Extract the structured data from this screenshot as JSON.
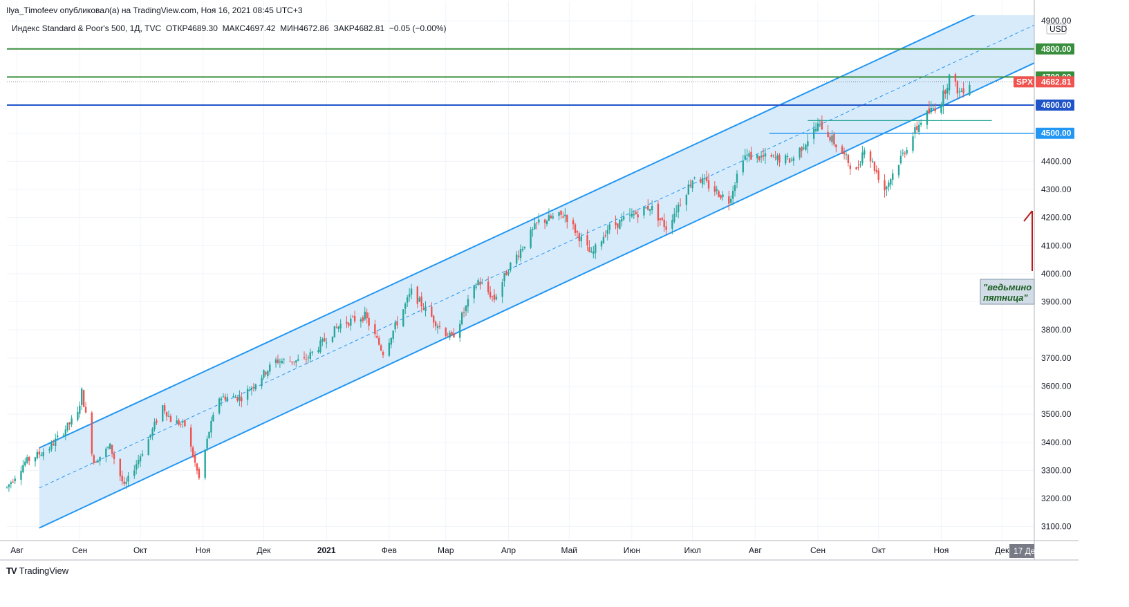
{
  "header": {
    "credit": "Ilya_Timofeev опубликовал(а) на TradingView.com, Ноя 16, 2021 08:45 UTC+3",
    "symbol": "Индекс Standard & Poor's 500, 1Д, TVC",
    "open_label": "ОТКР",
    "open": "4689.30",
    "high_label": "МАКС",
    "high": "4697.42",
    "low_label": "МИН",
    "low": "4672.86",
    "close_label": "ЗАКР",
    "close": "4682.81",
    "change": "−0.05 (−0.00%)"
  },
  "footer": {
    "brand": "TradingView",
    "logo": "TV"
  },
  "colors": {
    "up": "#26a69a",
    "down": "#ef5350",
    "channel": "#2196f3",
    "channel_fill": "#d4e9fb",
    "green_line": "#388e3c",
    "blue_line": "#1e54c8",
    "level_blue": "#2196f3",
    "arrow": "#b71c1c"
  },
  "chart_data": {
    "type": "candlestick",
    "currency": "USD",
    "ylim": [
      3050,
      4920
    ],
    "y_ticks": [
      "4900.00",
      "4800.00",
      "4700.00",
      "4600.00",
      "4500.00",
      "4400.00",
      "4300.00",
      "4200.00",
      "4100.00",
      "4000.00",
      "3900.00",
      "3800.00",
      "3700.00",
      "3600.00",
      "3500.00",
      "3400.00",
      "3300.00",
      "3200.00",
      "3100.00"
    ],
    "x_start": "2020-07-27",
    "x_end": "2021-12-17",
    "x_ticks": [
      {
        "date": "2020-08-01",
        "label": "Авг"
      },
      {
        "date": "2020-09-01",
        "label": "Сен"
      },
      {
        "date": "2020-10-01",
        "label": "Окт"
      },
      {
        "date": "2020-11-01",
        "label": "Ноя"
      },
      {
        "date": "2020-12-01",
        "label": "Дек"
      },
      {
        "date": "2021-01-01",
        "label": "2021"
      },
      {
        "date": "2021-02-01",
        "label": "Фев"
      },
      {
        "date": "2021-03-01",
        "label": "Мар"
      },
      {
        "date": "2021-04-01",
        "label": "Апр"
      },
      {
        "date": "2021-05-01",
        "label": "Май"
      },
      {
        "date": "2021-06-01",
        "label": "Июн"
      },
      {
        "date": "2021-07-01",
        "label": "Июл"
      },
      {
        "date": "2021-08-01",
        "label": "Авг"
      },
      {
        "date": "2021-09-01",
        "label": "Сен"
      },
      {
        "date": "2021-10-01",
        "label": "Окт"
      },
      {
        "date": "2021-11-01",
        "label": "Ноя"
      },
      {
        "date": "2021-12-01",
        "label": "Дек"
      }
    ],
    "cursor_date_label": "17 Де",
    "last_price": "4682.81",
    "last_price_label": "SPX",
    "series": [
      {
        "date": "2020-07-27",
        "close": 3240
      },
      {
        "date": "2020-08-05",
        "close": 3330
      },
      {
        "date": "2020-08-17",
        "close": 3380
      },
      {
        "date": "2020-08-31",
        "close": 3500
      },
      {
        "date": "2020-09-02",
        "close": 3580
      },
      {
        "date": "2020-09-08",
        "close": 3330
      },
      {
        "date": "2020-09-16",
        "close": 3385
      },
      {
        "date": "2020-09-23",
        "close": 3240
      },
      {
        "date": "2020-10-05",
        "close": 3410
      },
      {
        "date": "2020-10-12",
        "close": 3530
      },
      {
        "date": "2020-10-16",
        "close": 3480
      },
      {
        "date": "2020-10-23",
        "close": 3460
      },
      {
        "date": "2020-10-30",
        "close": 3270
      },
      {
        "date": "2020-11-04",
        "close": 3440
      },
      {
        "date": "2020-11-09",
        "close": 3560
      },
      {
        "date": "2020-11-20",
        "close": 3560
      },
      {
        "date": "2020-12-07",
        "close": 3690
      },
      {
        "date": "2020-12-21",
        "close": 3690
      },
      {
        "date": "2021-01-08",
        "close": 3820
      },
      {
        "date": "2021-01-20",
        "close": 3850
      },
      {
        "date": "2021-01-29",
        "close": 3720
      },
      {
        "date": "2021-02-12",
        "close": 3935
      },
      {
        "date": "2021-02-26",
        "close": 3810
      },
      {
        "date": "2021-03-04",
        "close": 3770
      },
      {
        "date": "2021-03-17",
        "close": 3975
      },
      {
        "date": "2021-03-25",
        "close": 3910
      },
      {
        "date": "2021-04-01",
        "close": 4020
      },
      {
        "date": "2021-04-16",
        "close": 4185
      },
      {
        "date": "2021-04-29",
        "close": 4210
      },
      {
        "date": "2021-05-12",
        "close": 4065
      },
      {
        "date": "2021-05-20",
        "close": 4160
      },
      {
        "date": "2021-06-10",
        "close": 4240
      },
      {
        "date": "2021-06-18",
        "close": 4165
      },
      {
        "date": "2021-07-02",
        "close": 4350
      },
      {
        "date": "2021-07-19",
        "close": 4260
      },
      {
        "date": "2021-07-26",
        "close": 4420
      },
      {
        "date": "2021-08-19",
        "close": 4405
      },
      {
        "date": "2021-09-02",
        "close": 4535
      },
      {
        "date": "2021-09-20",
        "close": 4360
      },
      {
        "date": "2021-09-24",
        "close": 4455
      },
      {
        "date": "2021-10-04",
        "close": 4300
      },
      {
        "date": "2021-10-14",
        "close": 4440
      },
      {
        "date": "2021-10-22",
        "close": 4545
      },
      {
        "date": "2021-11-01",
        "close": 4615
      },
      {
        "date": "2021-11-05",
        "close": 4700
      },
      {
        "date": "2021-11-10",
        "close": 4645
      },
      {
        "date": "2021-11-15",
        "close": 4682.81
      }
    ],
    "channel": {
      "start_date": "2020-08-12",
      "end_date": "2021-12-17",
      "lower_start": 3095,
      "lower_end": 4750,
      "upper_start": 3380,
      "upper_end": 5020
    },
    "levels": [
      {
        "value": 4800,
        "label": "4800.00",
        "color_key": "green_line",
        "start_date": "2020-07-27"
      },
      {
        "value": 4700,
        "label": "4700.00",
        "color_key": "green_line",
        "start_date": "2020-07-27"
      },
      {
        "value": 4600,
        "label": "4600.00",
        "color_key": "blue_line",
        "start_date": "2020-07-27"
      },
      {
        "value": 4500,
        "label": "4500.00",
        "color_key": "level_blue",
        "start_date": "2021-08-08"
      }
    ],
    "short_line": {
      "start_date": "2021-08-27",
      "end_date": "2021-11-26",
      "value": 4545
    },
    "annotation": {
      "lines": [
        "\"ведьмино",
        "пятница\""
      ]
    }
  }
}
